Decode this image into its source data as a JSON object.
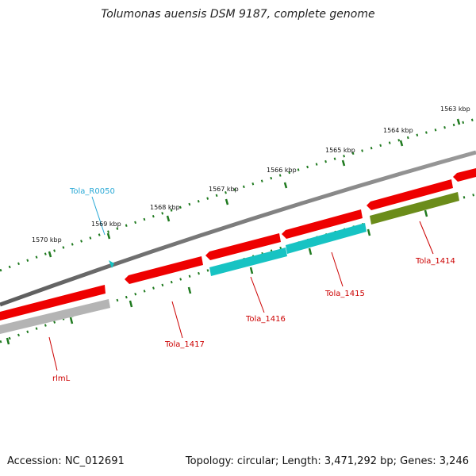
{
  "title": "Tolumonas auensis DSM 9187, complete genome",
  "accession_text": "Accession: NC_012691",
  "topology_text": "Topology: circular; Length: 3,471,292 bp; Genes: 3,246",
  "colors": {
    "backbone": "#7a7a7a",
    "ticks": "#1f7a1f",
    "gene_red": "#ee0000",
    "gene_cyan": "#17c3c3",
    "gene_olive": "#6b8c1a",
    "gene_gray": "#b4b4b4",
    "label_red": "#cc0000",
    "label_cyan": "#2aa9d6"
  },
  "kbp_labels": [
    "1563 kbp",
    "1564 kbp",
    "1565 kbp",
    "1566 kbp",
    "1567 kbp",
    "1568 kbp",
    "1569 kbp",
    "1570 kbp"
  ],
  "genes": [
    {
      "name": "rlmL",
      "color": "gene_gray"
    },
    {
      "name": "Tola_1417",
      "color": "gene_red"
    },
    {
      "name": "Tola_1416",
      "color": "gene_cyan"
    },
    {
      "name": "Tola_1415",
      "color": "gene_cyan"
    },
    {
      "name": "Tola_1414",
      "color": "gene_olive"
    },
    {
      "name": "Tola_R0050",
      "color": "gene_cyan"
    }
  ]
}
